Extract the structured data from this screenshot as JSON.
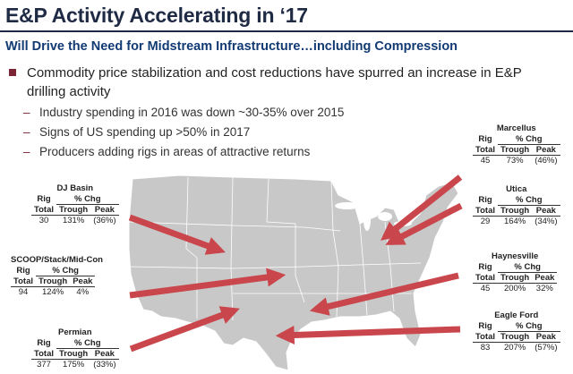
{
  "title": "E&P Activity Accelerating in ‘17",
  "subtitle": "Will Drive the Need for Midstream Infrastructure…including Compression",
  "bullet": "Commodity price stabilization and cost reductions have spurred an increase in E&P drilling activity",
  "sub_bullets": [
    "Industry spending in 2016 was down ~30-35% over 2015",
    "Signs of US spending up >50% in 2017",
    "Producers adding rigs in areas of attractive returns"
  ],
  "headers": {
    "rig": "Rig",
    "chg": "% Chg",
    "total": "Total",
    "trough": "Trough",
    "peak": "Peak"
  },
  "basins": {
    "dj": {
      "name": "DJ Basin",
      "total": "30",
      "trough": "131%",
      "peak": "(36%)"
    },
    "scoop": {
      "name": "SCOOP/Stack/Mid-Con",
      "total": "94",
      "trough": "124%",
      "peak": "4%"
    },
    "permian": {
      "name": "Permian",
      "total": "377",
      "trough": "175%",
      "peak": "(33%)"
    },
    "marcellus": {
      "name": "Marcellus",
      "total": "45",
      "trough": "73%",
      "peak": "(46%)"
    },
    "utica": {
      "name": "Utica",
      "total": "29",
      "trough": "164%",
      "peak": "(34%)"
    },
    "haynesville": {
      "name": "Haynesville",
      "total": "45",
      "trough": "200%",
      "peak": "32%"
    },
    "eagleford": {
      "name": "Eagle Ford",
      "total": "83",
      "trough": "207%",
      "peak": "(57%)"
    }
  },
  "colors": {
    "arrow": "#c9474c",
    "bullet": "#7a2436",
    "title": "#1f2a44",
    "subtitle": "#123a73",
    "map_fill": "#c8c8c8"
  },
  "icons": {
    "bullet": "square-bullet-icon",
    "arrow": "red-arrow-icon"
  }
}
